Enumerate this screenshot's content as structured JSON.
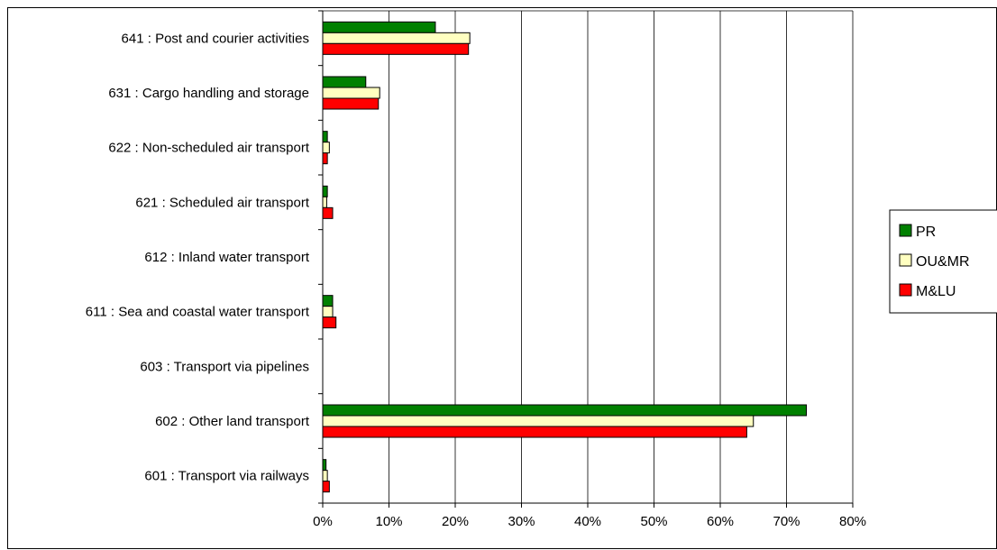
{
  "chart_data": {
    "type": "bar",
    "orientation": "horizontal",
    "categories": [
      "641 : Post and courier activities",
      "631 : Cargo handling and storage",
      "622 : Non-scheduled air transport",
      "621 : Scheduled air transport",
      "612 : Inland water transport",
      "611 : Sea and coastal water transport",
      "603 : Transport via pipelines",
      "602 : Other land transport",
      "601 : Transport via railways"
    ],
    "series": [
      {
        "name": "PR",
        "color": "#008000",
        "values": [
          0.17,
          0.065,
          0.007,
          0.007,
          0.0,
          0.015,
          0.0,
          0.73,
          0.005
        ]
      },
      {
        "name": "OU&MR",
        "color": "#ffffc0",
        "values": [
          0.222,
          0.086,
          0.01,
          0.006,
          0.0,
          0.015,
          0.0,
          0.65,
          0.007
        ]
      },
      {
        "name": "M&LU",
        "color": "#ff0000",
        "values": [
          0.22,
          0.084,
          0.007,
          0.015,
          0.0,
          0.02,
          0.0,
          0.64,
          0.01
        ]
      }
    ],
    "x_ticks": [
      "0%",
      "10%",
      "20%",
      "30%",
      "40%",
      "50%",
      "60%",
      "70%",
      "80%"
    ],
    "xlim": [
      0,
      0.8
    ],
    "grid": true,
    "legend": {
      "placement": "right",
      "entries": [
        "PR",
        "OU&MR",
        "M&LU"
      ]
    },
    "title": "",
    "xlabel": "",
    "ylabel": ""
  }
}
